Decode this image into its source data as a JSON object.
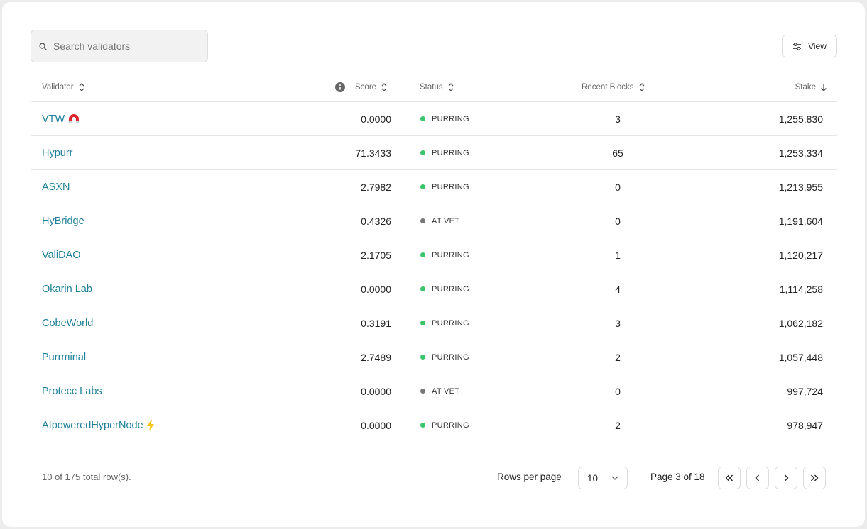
{
  "search": {
    "placeholder": "Search validators",
    "value": ""
  },
  "toolbar": {
    "view_label": "View"
  },
  "columns": {
    "validator": "Validator",
    "score": "Score",
    "status": "Status",
    "recent_blocks": "Recent Blocks",
    "stake": "Stake"
  },
  "status_colors": {
    "PURRING": "#3cc46b",
    "AT VET": "#777777"
  },
  "rows": [
    {
      "name": "VTW",
      "icon": "magnet-icon",
      "score": "0.0000",
      "status": "PURRING",
      "blocks": "3",
      "stake": "1,255,830"
    },
    {
      "name": "Hypurr",
      "icon": "",
      "score": "71.3433",
      "status": "PURRING",
      "blocks": "65",
      "stake": "1,253,334"
    },
    {
      "name": "ASXN",
      "icon": "",
      "score": "2.7982",
      "status": "PURRING",
      "blocks": "0",
      "stake": "1,213,955"
    },
    {
      "name": "HyBridge",
      "icon": "",
      "score": "0.4326",
      "status": "AT VET",
      "blocks": "0",
      "stake": "1,191,604"
    },
    {
      "name": "ValiDAO",
      "icon": "",
      "score": "2.1705",
      "status": "PURRING",
      "blocks": "1",
      "stake": "1,120,217"
    },
    {
      "name": "Okarin Lab",
      "icon": "",
      "score": "0.0000",
      "status": "PURRING",
      "blocks": "4",
      "stake": "1,114,258"
    },
    {
      "name": "CobeWorld",
      "icon": "",
      "score": "0.3191",
      "status": "PURRING",
      "blocks": "3",
      "stake": "1,062,182"
    },
    {
      "name": "Purrminal",
      "icon": "",
      "score": "2.7489",
      "status": "PURRING",
      "blocks": "2",
      "stake": "1,057,448"
    },
    {
      "name": "Protecc Labs",
      "icon": "",
      "score": "0.0000",
      "status": "AT VET",
      "blocks": "0",
      "stake": "997,724"
    },
    {
      "name": "AIpoweredHyperNode",
      "icon": "lightning-icon",
      "score": "0.0000",
      "status": "PURRING",
      "blocks": "2",
      "stake": "978,947"
    }
  ],
  "footer": {
    "row_count": "10 of 175 total row(s).",
    "rows_per_page_label": "Rows per page",
    "rows_per_page_value": "10",
    "page_info": "Page 3 of 18"
  }
}
